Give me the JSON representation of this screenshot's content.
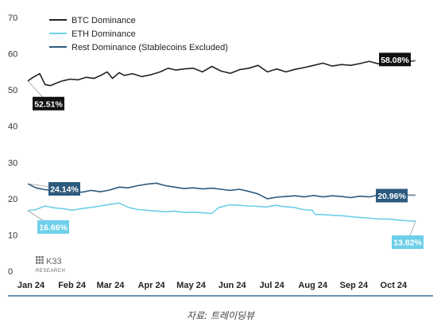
{
  "chart_data": {
    "type": "line",
    "x_axis": {
      "type": "date",
      "range": [
        "2024-01-01",
        "2024-10-20"
      ],
      "tick_labels": [
        "Jan 24",
        "Feb 24",
        "Mar 24",
        "Apr 24",
        "May 24",
        "Jun 24",
        "Jul 24",
        "Aug 24",
        "Sep 24",
        "Oct 24"
      ],
      "tick_dates": [
        "2024-01-01",
        "2024-02-01",
        "2024-03-01",
        "2024-04-01",
        "2024-05-01",
        "2024-06-01",
        "2024-07-01",
        "2024-08-01",
        "2024-09-01",
        "2024-10-01"
      ]
    },
    "y_axis": {
      "range": [
        0,
        70
      ],
      "ticks": [
        0,
        10,
        20,
        30,
        40,
        50,
        60,
        70
      ]
    },
    "grid": false,
    "legend_position": "top-left",
    "series": [
      {
        "name": "BTC Dominance",
        "color": "#222222",
        "x": [
          "2024-01-01",
          "2024-01-05",
          "2024-01-10",
          "2024-01-14",
          "2024-01-18",
          "2024-01-22",
          "2024-01-27",
          "2024-02-02",
          "2024-02-08",
          "2024-02-14",
          "2024-02-20",
          "2024-02-25",
          "2024-03-01",
          "2024-03-05",
          "2024-03-10",
          "2024-03-14",
          "2024-03-20",
          "2024-03-27",
          "2024-04-03",
          "2024-04-10",
          "2024-04-16",
          "2024-04-22",
          "2024-04-28",
          "2024-05-05",
          "2024-05-12",
          "2024-05-19",
          "2024-05-26",
          "2024-06-02",
          "2024-06-09",
          "2024-06-16",
          "2024-06-23",
          "2024-06-30",
          "2024-07-07",
          "2024-07-14",
          "2024-07-21",
          "2024-07-28",
          "2024-08-04",
          "2024-08-11",
          "2024-08-18",
          "2024-08-25",
          "2024-09-01",
          "2024-09-08",
          "2024-09-15",
          "2024-09-22",
          "2024-09-28",
          "2024-10-03",
          "2024-10-08",
          "2024-10-13",
          "2024-10-20"
        ],
        "values": [
          52.5,
          53.5,
          54.5,
          51.5,
          51.2,
          51.8,
          52.5,
          53.0,
          52.8,
          53.5,
          53.2,
          54.0,
          55.0,
          53.2,
          54.8,
          54.0,
          54.5,
          53.7,
          54.2,
          55.0,
          56.0,
          55.5,
          55.8,
          56.0,
          55.0,
          56.5,
          55.2,
          54.6,
          55.6,
          56.0,
          56.8,
          55.0,
          55.8,
          55.0,
          55.7,
          56.2,
          56.8,
          57.4,
          56.6,
          57.0,
          56.8,
          57.3,
          57.9,
          57.2,
          58.2,
          58.5,
          58.1,
          57.8,
          58.08
        ]
      },
      {
        "name": "ETH Dominance",
        "color": "#6ecfe9",
        "x": [
          "2024-01-01",
          "2024-01-07",
          "2024-01-14",
          "2024-01-21",
          "2024-01-28",
          "2024-02-04",
          "2024-02-11",
          "2024-02-18",
          "2024-02-25",
          "2024-03-03",
          "2024-03-10",
          "2024-03-17",
          "2024-03-24",
          "2024-03-31",
          "2024-04-07",
          "2024-04-14",
          "2024-04-21",
          "2024-04-28",
          "2024-05-05",
          "2024-05-12",
          "2024-05-19",
          "2024-05-24",
          "2024-06-01",
          "2024-06-08",
          "2024-06-15",
          "2024-06-22",
          "2024-06-29",
          "2024-07-06",
          "2024-07-13",
          "2024-07-20",
          "2024-07-27",
          "2024-08-03",
          "2024-08-05",
          "2024-08-12",
          "2024-08-19",
          "2024-08-26",
          "2024-09-02",
          "2024-09-09",
          "2024-09-16",
          "2024-09-23",
          "2024-09-30",
          "2024-10-07",
          "2024-10-14",
          "2024-10-20"
        ],
        "values": [
          16.7,
          17.0,
          18.0,
          17.5,
          17.2,
          16.8,
          17.3,
          17.6,
          18.0,
          18.4,
          18.8,
          17.6,
          17.0,
          16.8,
          16.6,
          16.4,
          16.6,
          16.2,
          16.3,
          16.1,
          15.9,
          17.5,
          18.3,
          18.2,
          18.0,
          17.9,
          17.7,
          18.2,
          17.8,
          17.6,
          17.0,
          16.8,
          15.7,
          15.6,
          15.4,
          15.3,
          15.0,
          14.8,
          14.6,
          14.4,
          14.4,
          14.1,
          13.9,
          13.82
        ]
      },
      {
        "name": "Rest Dominance (Stablecoins Excluded)",
        "color": "#2d5a7d",
        "x": [
          "2024-01-01",
          "2024-01-07",
          "2024-01-14",
          "2024-01-21",
          "2024-01-28",
          "2024-02-04",
          "2024-02-11",
          "2024-02-18",
          "2024-02-25",
          "2024-03-03",
          "2024-03-10",
          "2024-03-17",
          "2024-03-24",
          "2024-03-31",
          "2024-04-07",
          "2024-04-14",
          "2024-04-21",
          "2024-04-28",
          "2024-05-05",
          "2024-05-12",
          "2024-05-19",
          "2024-05-26",
          "2024-06-02",
          "2024-06-09",
          "2024-06-16",
          "2024-06-23",
          "2024-06-30",
          "2024-07-07",
          "2024-07-14",
          "2024-07-21",
          "2024-07-28",
          "2024-08-04",
          "2024-08-11",
          "2024-08-18",
          "2024-08-25",
          "2024-09-01",
          "2024-09-08",
          "2024-09-15",
          "2024-09-22",
          "2024-09-29",
          "2024-10-06",
          "2024-10-13",
          "2024-10-20"
        ],
        "values": [
          24.14,
          23.0,
          22.5,
          22.2,
          22.4,
          22.0,
          21.8,
          22.3,
          21.9,
          22.4,
          23.2,
          23.0,
          23.6,
          24.0,
          24.3,
          23.6,
          23.2,
          22.8,
          23.0,
          22.7,
          22.9,
          22.6,
          22.3,
          22.6,
          22.0,
          21.3,
          20.0,
          20.4,
          20.6,
          20.8,
          20.5,
          20.9,
          20.5,
          20.8,
          20.6,
          20.3,
          20.7,
          20.5,
          21.0,
          20.7,
          21.2,
          21.0,
          20.96
        ]
      }
    ],
    "annotations": [
      {
        "series": 0,
        "at": "start",
        "label": "52.51%",
        "bg": "#111111",
        "fg": "#ffffff"
      },
      {
        "series": 0,
        "at": "end",
        "label": "58.08%",
        "bg": "#111111",
        "fg": "#ffffff"
      },
      {
        "series": 2,
        "at": "start",
        "label": "24.14%",
        "bg": "#2d5a7d",
        "fg": "#ffffff"
      },
      {
        "series": 2,
        "at": "end",
        "label": "20.96%",
        "bg": "#2d5a7d",
        "fg": "#ffffff"
      },
      {
        "series": 1,
        "at": "start",
        "label": "16.66%",
        "bg": "#6ecfe9",
        "fg": "#ffffff"
      },
      {
        "series": 1,
        "at": "end",
        "label": "13.82%",
        "bg": "#6ecfe9",
        "fg": "#ffffff"
      }
    ],
    "watermark": {
      "text": "K33",
      "subtext": "RESEARCH"
    }
  },
  "caption": "자료: 트레이딩뷰",
  "footer_line_color": "#3d6f95"
}
